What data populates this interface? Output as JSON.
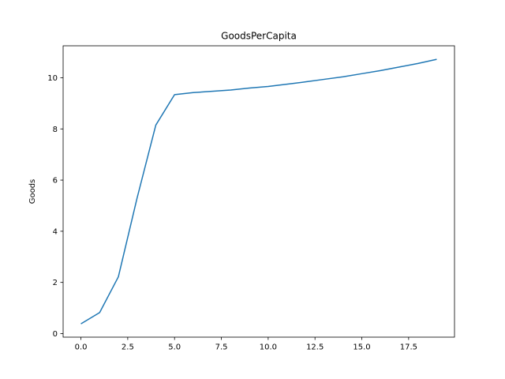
{
  "chart_data": {
    "type": "line",
    "title": "GoodsPerCapita",
    "xlabel": "",
    "ylabel": "Goods",
    "xlim": [
      -0.95,
      19.95
    ],
    "ylim": [
      -0.14,
      11.25
    ],
    "x_ticks": [
      0,
      2.5,
      5,
      7.5,
      10,
      12.5,
      15,
      17.5
    ],
    "x_tick_labels": [
      "0.0",
      "2.5",
      "5.0",
      "7.5",
      "10.0",
      "12.5",
      "15.0",
      "17.5"
    ],
    "y_ticks": [
      0,
      2,
      4,
      6,
      8,
      10
    ],
    "y_tick_labels": [
      "0",
      "2",
      "4",
      "6",
      "8",
      "10"
    ],
    "grid": false,
    "series": [
      {
        "color": "#1f77b4",
        "x": [
          0,
          1,
          2,
          3,
          4,
          5,
          6,
          7,
          8,
          9,
          10,
          11,
          12,
          13,
          14,
          15,
          16,
          17,
          18,
          19
        ],
        "values": [
          0.38,
          0.82,
          2.22,
          5.3,
          8.15,
          9.34,
          9.42,
          9.47,
          9.52,
          9.6,
          9.66,
          9.75,
          9.84,
          9.94,
          10.04,
          10.16,
          10.28,
          10.42,
          10.56,
          10.72
        ]
      }
    ]
  }
}
